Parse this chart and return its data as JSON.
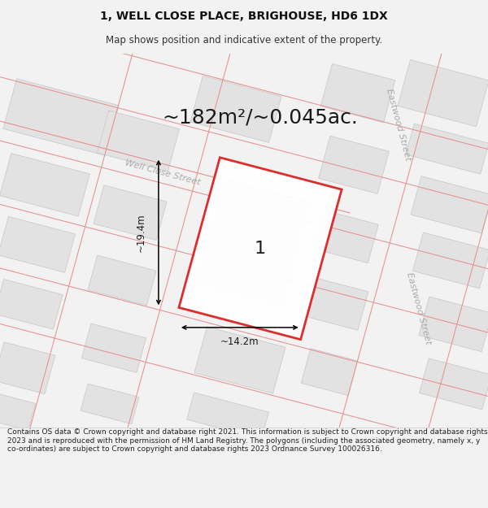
{
  "title_line1": "1, WELL CLOSE PLACE, BRIGHOUSE, HD6 1DX",
  "title_line2": "Map shows position and indicative extent of the property.",
  "area_text": "~182m²/~0.045ac.",
  "label_number": "1",
  "dim_width": "~14.2m",
  "dim_height": "~19.4m",
  "street_name_diagonal": "Well Close Street",
  "street_right_top": "Eastwood Street",
  "street_right_bottom": "Eastwood Street",
  "footer_text": "Contains OS data © Crown copyright and database right 2021. This information is subject to Crown copyright and database rights 2023 and is reproduced with the permission of HM Land Registry. The polygons (including the associated geometry, namely x, y co-ordinates) are subject to Crown copyright and database rights 2023 Ordnance Survey 100026316.",
  "bg_color": "#f2f2f2",
  "map_bg": "#f2f2f2",
  "building_fill": "#e2e2e2",
  "building_stroke": "#cccccc",
  "red_outline": "#dd2222",
  "red_light": "#f5b8b8",
  "black_color": "#1a1a1a",
  "gray_text": "#aaaaaa",
  "title_fontsize": 10,
  "subtitle_fontsize": 8.5,
  "area_fontsize": 18,
  "dim_fontsize": 8.5,
  "street_fontsize": 8,
  "label_fontsize": 16,
  "footer_fontsize": 6.5
}
